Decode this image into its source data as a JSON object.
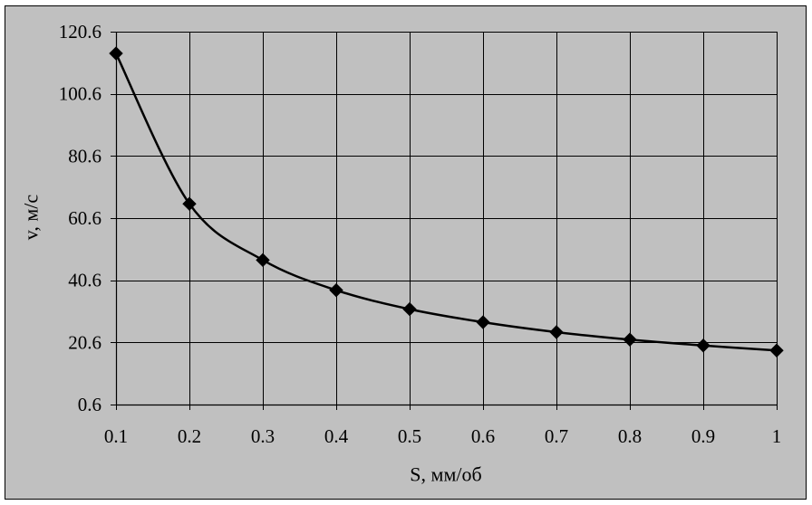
{
  "colors": {
    "background": "#C0C0C0",
    "plot_area": "#C0C0C0",
    "line": "#000000",
    "grid": "#000000",
    "marker": "#000000",
    "border": "#000000"
  },
  "chart_data": {
    "type": "line",
    "x": [
      0.1,
      0.2,
      0.3,
      0.4,
      0.5,
      0.6,
      0.7,
      0.8,
      0.9,
      1
    ],
    "series": [
      {
        "values": [
          113.6,
          65.2,
          47.1,
          37.4,
          31.3,
          27.1,
          23.9,
          21.5,
          19.6,
          18.0
        ],
        "marker": "diamond",
        "smooth": true
      }
    ],
    "xlabel": "S, мм/об",
    "ylabel": "v, м/с",
    "xlim": [
      0.1,
      1
    ],
    "ylim": [
      0.6,
      120.6
    ],
    "xticks": [
      0.1,
      0.2,
      0.3,
      0.4,
      0.5,
      0.6,
      0.7,
      0.8,
      0.9,
      1
    ],
    "xtick_labels": [
      "0.1",
      "0.2",
      "0.3",
      "0.4",
      "0.5",
      "0.6",
      "0.7",
      "0.8",
      "0.9",
      "1"
    ],
    "yticks": [
      0.6,
      20.6,
      40.6,
      60.6,
      80.6,
      100.6,
      120.6
    ],
    "ytick_labels": [
      "0.6",
      "20.6",
      "40.6",
      "60.6",
      "80.6",
      "100.6",
      "120.6"
    ],
    "grid": true,
    "legend": "none"
  }
}
